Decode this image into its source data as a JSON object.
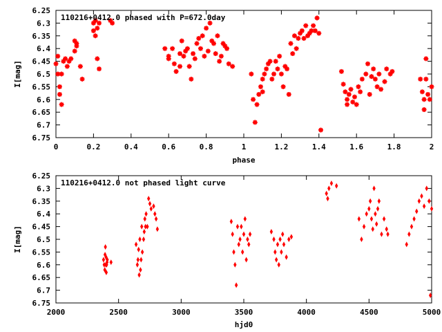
{
  "chart_data": [
    {
      "type": "scatter",
      "title": "110216+0412.0 phased with P=672.0day",
      "xlabel": "phase",
      "ylabel": "I[mag]",
      "xlim": [
        0,
        2
      ],
      "ylim": [
        6.75,
        6.25
      ],
      "y_inverted": true,
      "xticks": [
        "0",
        "0.2",
        "0.4",
        "0.6",
        "0.8",
        "1",
        "1.2",
        "1.4",
        "1.6",
        "1.8",
        "2"
      ],
      "xtick_values": [
        0,
        0.2,
        0.4,
        0.6,
        0.8,
        1.0,
        1.2,
        1.4,
        1.6,
        1.8,
        2.0
      ],
      "yticks": [
        "6.25",
        "6.3",
        "6.35",
        "6.4",
        "6.45",
        "6.5",
        "6.55",
        "6.6",
        "6.65",
        "6.7",
        "6.75"
      ],
      "ytick_values": [
        6.25,
        6.3,
        6.35,
        6.4,
        6.45,
        6.5,
        6.55,
        6.6,
        6.65,
        6.7,
        6.75
      ],
      "marker": "plus-cross",
      "color": "#ff0000",
      "series": [
        {
          "x": [
            0.0,
            0.01,
            0.01,
            0.02,
            0.02,
            0.03,
            0.03,
            0.04,
            0.05,
            0.06,
            0.07,
            0.08,
            0.1,
            0.1,
            0.11,
            0.11,
            0.13,
            0.14,
            0.2,
            0.2,
            0.21,
            0.21,
            0.22,
            0.22,
            0.23,
            0.23,
            0.29,
            0.3,
            0.58,
            0.6,
            0.6,
            0.62,
            0.63,
            0.64,
            0.66,
            0.66,
            0.67,
            0.68,
            0.69,
            0.7,
            0.71,
            0.72,
            0.73,
            0.74,
            0.75,
            0.76,
            0.77,
            0.78,
            0.79,
            0.8,
            0.81,
            0.82,
            0.83,
            0.84,
            0.85,
            0.86,
            0.87,
            0.88,
            0.89,
            0.9,
            0.91,
            0.92,
            0.94,
            1.04,
            1.05,
            1.06,
            1.07,
            1.08,
            1.09,
            1.1,
            1.1,
            1.11,
            1.12,
            1.13,
            1.14,
            1.15,
            1.16,
            1.17,
            1.18,
            1.19,
            1.2,
            1.21,
            1.22,
            1.23,
            1.24,
            1.25,
            1.26,
            1.27,
            1.28,
            1.29,
            1.3,
            1.31,
            1.32,
            1.33,
            1.34,
            1.35,
            1.36,
            1.37,
            1.38,
            1.39,
            1.4,
            1.41,
            1.52,
            1.53,
            1.54,
            1.55,
            1.55,
            1.56,
            1.57,
            1.58,
            1.59,
            1.6,
            1.61,
            1.62,
            1.63,
            1.65,
            1.66,
            1.67,
            1.68,
            1.69,
            1.7,
            1.71,
            1.72,
            1.73,
            1.75,
            1.76,
            1.78,
            1.79,
            1.94,
            1.95,
            1.96,
            1.97,
            1.98,
            1.99,
            2.0,
            1.97,
            1.96
          ],
          "y": [
            6.46,
            6.43,
            6.5,
            6.58,
            6.55,
            6.62,
            6.5,
            6.45,
            6.44,
            6.47,
            6.45,
            6.44,
            6.37,
            6.41,
            6.39,
            6.38,
            6.47,
            6.52,
            6.33,
            6.3,
            6.35,
            6.29,
            6.32,
            6.44,
            6.3,
            6.48,
            6.29,
            6.3,
            6.4,
            6.43,
            6.44,
            6.4,
            6.46,
            6.49,
            6.42,
            6.47,
            6.37,
            6.43,
            6.41,
            6.4,
            6.47,
            6.52,
            6.42,
            6.44,
            6.38,
            6.36,
            6.4,
            6.35,
            6.43,
            6.32,
            6.41,
            6.3,
            6.37,
            6.38,
            6.42,
            6.35,
            6.45,
            6.43,
            6.38,
            6.39,
            6.4,
            6.46,
            6.47,
            6.5,
            6.6,
            6.69,
            6.62,
            6.58,
            6.55,
            6.52,
            6.57,
            6.5,
            6.48,
            6.46,
            6.45,
            6.52,
            6.5,
            6.45,
            6.48,
            6.43,
            6.5,
            6.55,
            6.47,
            6.48,
            6.58,
            6.38,
            6.42,
            6.35,
            6.4,
            6.36,
            6.34,
            6.33,
            6.36,
            6.31,
            6.35,
            6.34,
            6.33,
            6.31,
            6.33,
            6.28,
            6.34,
            6.72,
            6.49,
            6.54,
            6.57,
            6.6,
            6.62,
            6.58,
            6.56,
            6.61,
            6.59,
            6.62,
            6.55,
            6.57,
            6.52,
            6.5,
            6.46,
            6.58,
            6.51,
            6.48,
            6.52,
            6.55,
            6.5,
            6.56,
            6.53,
            6.48,
            6.5,
            6.49,
            6.52,
            6.57,
            6.6,
            6.52,
            6.58,
            6.6,
            6.55,
            6.44,
            6.64
          ]
        }
      ]
    },
    {
      "type": "scatter",
      "title": "110216+0412.0 not phased light curve",
      "xlabel": "hjd0",
      "ylabel": "I[mag]",
      "xlim": [
        2000,
        5000
      ],
      "ylim": [
        6.75,
        6.25
      ],
      "y_inverted": true,
      "xticks": [
        "2000",
        "2500",
        "3000",
        "3500",
        "4000",
        "4500",
        "5000"
      ],
      "xtick_values": [
        2000,
        2500,
        3000,
        3500,
        4000,
        4500,
        5000
      ],
      "yticks": [
        "6.25",
        "6.3",
        "6.35",
        "6.4",
        "6.45",
        "6.5",
        "6.55",
        "6.6",
        "6.65",
        "6.7",
        "6.75"
      ],
      "ytick_values": [
        6.25,
        6.3,
        6.35,
        6.4,
        6.45,
        6.5,
        6.55,
        6.6,
        6.65,
        6.7,
        6.75
      ],
      "marker": "diamond",
      "color": "#ff0000",
      "series": [
        {
          "x": [
            2380,
            2385,
            2390,
            2392,
            2395,
            2398,
            2400,
            2402,
            2405,
            2408,
            2410,
            2440,
            2640,
            2650,
            2655,
            2660,
            2665,
            2670,
            2675,
            2680,
            2685,
            2690,
            2700,
            2705,
            2710,
            2715,
            2720,
            2730,
            2740,
            2750,
            2760,
            2780,
            2790,
            2800,
            2810,
            3400,
            3410,
            3420,
            3430,
            3440,
            3450,
            3460,
            3470,
            3480,
            3490,
            3500,
            3510,
            3520,
            3530,
            3540,
            3550,
            3720,
            3740,
            3750,
            3760,
            3770,
            3780,
            3790,
            3800,
            3810,
            3820,
            3840,
            3860,
            3880,
            4160,
            4170,
            4180,
            4200,
            4240,
            4420,
            4440,
            4460,
            4480,
            4500,
            4510,
            4520,
            4530,
            4540,
            4550,
            4560,
            4570,
            4580,
            4600,
            4620,
            4640,
            4650,
            4800,
            4820,
            4840,
            4860,
            4880,
            4900,
            4920,
            4940,
            4960,
            4980,
            4990,
            5000
          ],
          "y": [
            6.58,
            6.6,
            6.62,
            6.56,
            6.53,
            6.6,
            6.57,
            6.63,
            6.6,
            6.59,
            6.58,
            6.59,
            6.52,
            6.6,
            6.58,
            6.54,
            6.64,
            6.5,
            6.62,
            6.58,
            6.45,
            6.55,
            6.5,
            6.47,
            6.42,
            6.45,
            6.4,
            6.45,
            6.34,
            6.36,
            6.38,
            6.37,
            6.4,
            6.42,
            6.46,
            6.43,
            6.48,
            6.55,
            6.6,
            6.68,
            6.45,
            6.52,
            6.5,
            6.45,
            6.55,
            6.48,
            6.42,
            6.58,
            6.5,
            6.52,
            6.48,
            6.47,
            6.5,
            6.55,
            6.58,
            6.52,
            6.6,
            6.5,
            6.55,
            6.48,
            6.52,
            6.57,
            6.5,
            6.49,
            6.32,
            6.34,
            6.3,
            6.28,
            6.29,
            6.42,
            6.5,
            6.45,
            6.4,
            6.38,
            6.35,
            6.42,
            6.46,
            6.3,
            6.4,
            6.44,
            6.38,
            6.35,
            6.48,
            6.42,
            6.46,
            6.48,
            6.52,
            6.48,
            6.45,
            6.42,
            6.39,
            6.35,
            6.33,
            6.37,
            6.3,
            6.35,
            6.72,
            6.38
          ]
        }
      ]
    }
  ]
}
